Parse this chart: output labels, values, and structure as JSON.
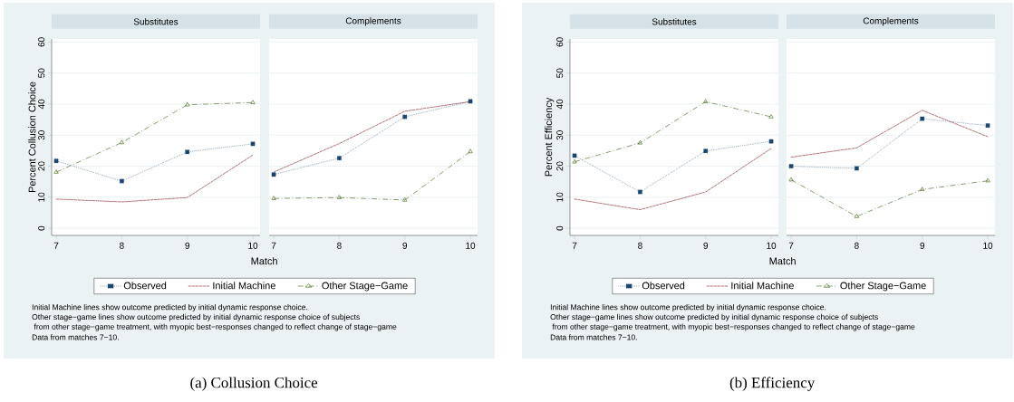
{
  "chart_data": [
    {
      "type": "line",
      "title": "Substitutes",
      "xlabel": "Match",
      "ylabel": "Percent Collusion Choice",
      "x": [
        7,
        8,
        9,
        10
      ],
      "xlim": [
        6.93,
        10.11
      ],
      "xticks": [
        7,
        8,
        9,
        10
      ],
      "ylim": [
        -2.3,
        61
      ],
      "yticks": [
        0,
        10,
        20,
        30,
        40,
        50,
        60
      ],
      "grid": "y",
      "legend": "bottom",
      "annotations": [
        "Initial Machine lines show outcome predicted by initial dynamic response choice.",
        "Other stage−game lines show outcome predicted by initial dynamic response choice of subjects",
        " from other stage−game treatment, with myopic best−responses changed to reflect change of stage−game",
        "Data from matches 7−10.",
        "(a) Collusion Choice"
      ],
      "series": [
        {
          "name": "Observed",
          "color": "#1a476f",
          "marker": "square",
          "line_style": "dotted",
          "values": [
            21.7,
            15.2,
            24.6,
            27.2
          ]
        },
        {
          "name": "Initial Machine",
          "color": "#90353b",
          "marker": "none",
          "line_style": "dashed",
          "values": [
            9.4,
            8.5,
            9.9,
            23.6
          ]
        },
        {
          "name": "Other Stage−Game",
          "color": "#55752f",
          "marker": "triangle",
          "line_style": "dashdot",
          "values": [
            18.1,
            27.6,
            39.8,
            40.5
          ]
        }
      ]
    },
    {
      "type": "line",
      "title": "Complements",
      "x": [
        7,
        8,
        9,
        10
      ],
      "xlim": [
        6.93,
        10.11
      ],
      "xticks": [
        7,
        8,
        9,
        10
      ],
      "ylim": [
        -2.3,
        61
      ],
      "yticks": [
        0,
        10,
        20,
        30,
        40,
        50,
        60
      ],
      "grid": "y",
      "tick_labels": "x",
      "series": [
        {
          "color": "#1a476f",
          "marker": "square",
          "line_style": "dotted",
          "values": [
            17.3,
            22.6,
            35.9,
            40.9
          ]
        },
        {
          "color": "#90353b",
          "marker": "none",
          "line_style": "dashed",
          "values": [
            18.1,
            27.3,
            37.7,
            40.8
          ]
        },
        {
          "color": "#55752f",
          "marker": "triangle",
          "line_style": "dashdot",
          "values": [
            9.6,
            9.9,
            9.1,
            24.7
          ]
        }
      ]
    },
    {
      "type": "line",
      "title": "Substitutes",
      "xlabel": "Match",
      "ylabel": "Percent Efficiency",
      "x": [
        7,
        8,
        9,
        10
      ],
      "xlim": [
        6.93,
        10.11
      ],
      "xticks": [
        7,
        8,
        9,
        10
      ],
      "ylim": [
        -2.3,
        61
      ],
      "yticks": [
        0,
        10,
        20,
        30,
        40,
        50,
        60
      ],
      "grid": "y",
      "legend": "bottom",
      "annotations": [
        "Initial Machine lines show outcome predicted by initial dynamic response choice.",
        "Other stage−game lines show outcome predicted by initial dynamic response choice of subjects",
        " from other stage−game treatment, with myopic best−responses changed to reflect change of stage−game",
        "Data from matches 7−10.",
        "(b) Efficiency"
      ],
      "series": [
        {
          "name": "Observed",
          "color": "#1a476f",
          "marker": "square",
          "line_style": "dotted",
          "values": [
            23.4,
            11.7,
            24.9,
            28.0
          ]
        },
        {
          "name": "Initial Machine",
          "color": "#90353b",
          "marker": "none",
          "line_style": "dashed",
          "values": [
            9.4,
            6.0,
            11.7,
            25.7
          ]
        },
        {
          "name": "Other Stage−Game",
          "color": "#55752f",
          "marker": "triangle",
          "line_style": "dashdot",
          "values": [
            21.4,
            27.5,
            40.8,
            35.9
          ]
        }
      ]
    },
    {
      "type": "line",
      "title": "Complements",
      "x": [
        7,
        8,
        9,
        10
      ],
      "xlim": [
        6.93,
        10.11
      ],
      "xticks": [
        7,
        8,
        9,
        10
      ],
      "ylim": [
        -2.3,
        61
      ],
      "yticks": [
        0,
        10,
        20,
        30,
        40,
        50,
        60
      ],
      "grid": "y",
      "tick_labels": "x",
      "series": [
        {
          "color": "#1a476f",
          "marker": "square",
          "line_style": "dotted",
          "values": [
            20.0,
            19.3,
            35.3,
            33.1
          ]
        },
        {
          "color": "#90353b",
          "marker": "none",
          "line_style": "dashed",
          "values": [
            22.9,
            25.9,
            38.0,
            29.5
          ]
        },
        {
          "color": "#55752f",
          "marker": "triangle",
          "line_style": "dashdot",
          "values": [
            15.6,
            3.8,
            12.5,
            15.3
          ]
        }
      ]
    }
  ]
}
